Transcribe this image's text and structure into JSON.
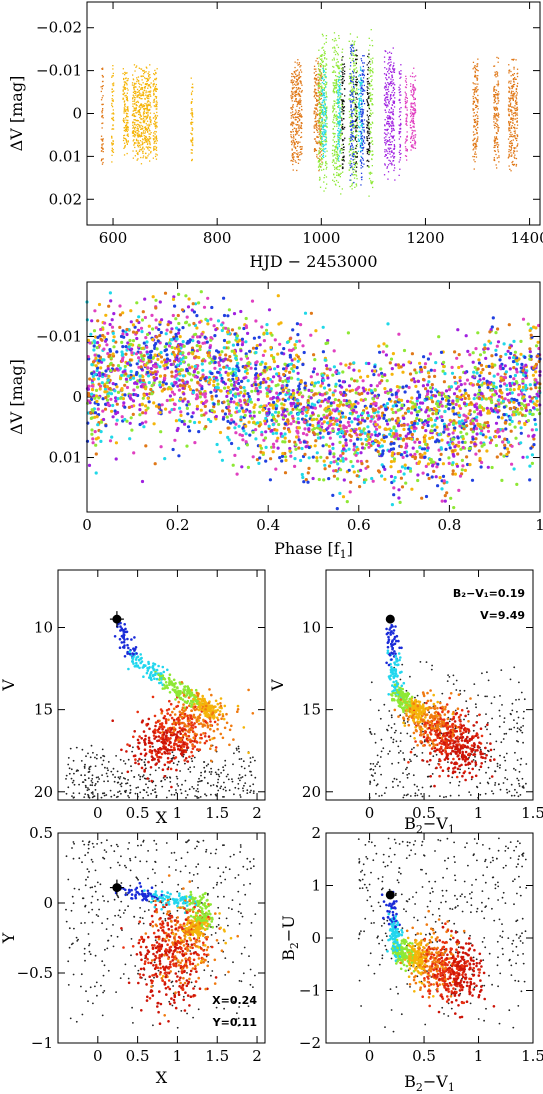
{
  "figure": {
    "background": "#ffffff"
  },
  "chart_data": [
    {
      "id": "lightcurve",
      "type": "scatter",
      "xlabel": "HJD − 2453000",
      "ylabel": "ΔV [mag]",
      "xlim": [
        550,
        1420
      ],
      "ylim": [
        0.026,
        -0.026
      ],
      "xticks": [
        600,
        800,
        1000,
        1200,
        1400
      ],
      "yticks": [
        -0.02,
        -0.01,
        0,
        0.01,
        0.02
      ],
      "ytick_labels": [
        "−0.02",
        "−0.01",
        "0",
        "0.01",
        "0.02"
      ],
      "series": [
        {
          "color": "#f5b50a",
          "x_ranges": [
            [
              618,
              628
            ],
            [
              636,
              672
            ],
            [
              676,
              684
            ],
            [
              596,
              600
            ],
            [
              748,
              752
            ]
          ],
          "amp": 0.012
        },
        {
          "color": "#e07818",
          "x_ranges": [
            [
              576,
              580
            ],
            [
              940,
              962
            ],
            [
              985,
              1000
            ],
            [
              1290,
              1300
            ],
            [
              1330,
              1340
            ],
            [
              1358,
              1376
            ]
          ],
          "amp": 0.014
        },
        {
          "color": "#8ee835",
          "x_ranges": [
            [
              993,
              1010
            ],
            [
              1020,
              1040
            ],
            [
              1052,
              1068
            ],
            [
              1090,
              1098
            ]
          ],
          "amp": 0.02
        },
        {
          "color": "#20d8e8",
          "x_ranges": [
            [
              1000,
              1008
            ],
            [
              1030,
              1036
            ],
            [
              1070,
              1078
            ]
          ],
          "amp": 0.012
        },
        {
          "color": "#2040e0",
          "x_ranges": [
            [
              1054,
              1062
            ],
            [
              1074,
              1082
            ]
          ],
          "amp": 0.018
        },
        {
          "color": "#111111",
          "x_ranges": [
            [
              1038,
              1044
            ],
            [
              1064,
              1068
            ],
            [
              1086,
              1092
            ]
          ],
          "amp": 0.015
        },
        {
          "color": "#a020e0",
          "x_ranges": [
            [
              1120,
              1140
            ],
            [
              1148,
              1152
            ]
          ],
          "amp": 0.017
        },
        {
          "color": "#e040c0",
          "x_ranges": [
            [
              1170,
              1180
            ],
            [
              1160,
              1164
            ]
          ],
          "amp": 0.011
        }
      ]
    },
    {
      "id": "phase",
      "type": "scatter",
      "xlabel": "Phase [f",
      "xlabel_sub": "1",
      "xlabel_end": "]",
      "ylabel": "ΔV [mag]",
      "xlim": [
        0,
        1
      ],
      "ylim": [
        0.019,
        -0.019
      ],
      "xticks": [
        0,
        0.2,
        0.4,
        0.6,
        0.8,
        1
      ],
      "xtick_labels": [
        "0",
        "0.2",
        "0.4",
        "0.6",
        "0.8",
        "1"
      ],
      "yticks": [
        -0.01,
        0,
        0.01
      ],
      "ytick_labels": [
        "−0.01",
        "0",
        "0.01"
      ],
      "model": {
        "mean": 0,
        "semi_amplitude": 0.0045,
        "phase_of_max": 0.18
      },
      "colors": [
        "#8ee835",
        "#2040e0",
        "#f5b50a",
        "#a020e0",
        "#20d8e8",
        "#e07818",
        "#e040c0"
      ]
    },
    {
      "id": "cmd-x-v",
      "type": "scatter",
      "xlabel": "X",
      "ylabel": "V",
      "xlim": [
        -0.5,
        2.1
      ],
      "ylim": [
        20.5,
        6.5
      ],
      "xticks": [
        0,
        0.5,
        1,
        1.5,
        2
      ],
      "xtick_labels": [
        "0",
        "0.5",
        "1",
        "1.5",
        "2"
      ],
      "yticks": [
        10,
        15,
        20
      ],
      "ytick_labels": [
        "10",
        "15",
        "20"
      ],
      "star": {
        "x": 0.24,
        "y": 9.49
      }
    },
    {
      "id": "cmd-bv-v",
      "type": "scatter",
      "xlabel": "B",
      "xlabel_parts": [
        "B",
        "2",
        "−V",
        "1"
      ],
      "ylabel": "V",
      "xlim": [
        -0.4,
        1.5
      ],
      "ylim": [
        20.5,
        6.5
      ],
      "xticks": [
        0,
        0.5,
        1,
        1.5
      ],
      "xtick_labels": [
        "0",
        "0.5",
        "1",
        "1.5"
      ],
      "yticks": [
        10,
        15,
        20
      ],
      "ytick_labels": [
        "10",
        "15",
        "20"
      ],
      "star": {
        "x": 0.19,
        "y": 9.49
      },
      "annotations": [
        "B₂−V₁=0.19",
        "V=9.49"
      ]
    },
    {
      "id": "cc-x-y",
      "type": "scatter",
      "xlabel": "X",
      "ylabel": "Y",
      "xlim": [
        -0.5,
        2.1
      ],
      "ylim": [
        -1.0,
        0.5
      ],
      "xticks": [
        0,
        0.5,
        1,
        1.5,
        2
      ],
      "xtick_labels": [
        "0",
        "0.5",
        "1",
        "1.5",
        "2"
      ],
      "yticks": [
        -1,
        -0.5,
        0,
        0.5
      ],
      "ytick_labels": [
        "−1",
        "−0.5",
        "0",
        "0.5"
      ],
      "star": {
        "x": 0.24,
        "y": 0.11
      },
      "annotations": [
        "X=0.24",
        "Y=0.11"
      ]
    },
    {
      "id": "cc-bv-bu",
      "type": "scatter",
      "xlabel_parts": [
        "B",
        "2",
        "−V",
        "1"
      ],
      "ylabel_parts": [
        "B",
        "2",
        "−U",
        ""
      ],
      "xlim": [
        -0.4,
        1.5
      ],
      "ylim": [
        -2.0,
        2.0
      ],
      "xticks": [
        0,
        0.5,
        1,
        1.5
      ],
      "xtick_labels": [
        "0",
        "0.5",
        "1",
        "1.5"
      ],
      "yticks": [
        -2,
        -1,
        0,
        1,
        2
      ],
      "ytick_labels": [
        "−2",
        "−1",
        "0",
        "1",
        "2"
      ],
      "star": {
        "x": 0.19,
        "y": 0.82
      }
    }
  ],
  "sequence_colors": [
    "#1a2bd8",
    "#22d6ee",
    "#8ee835",
    "#f5b50a",
    "#f07a10",
    "#e83010",
    "#cc1408"
  ]
}
